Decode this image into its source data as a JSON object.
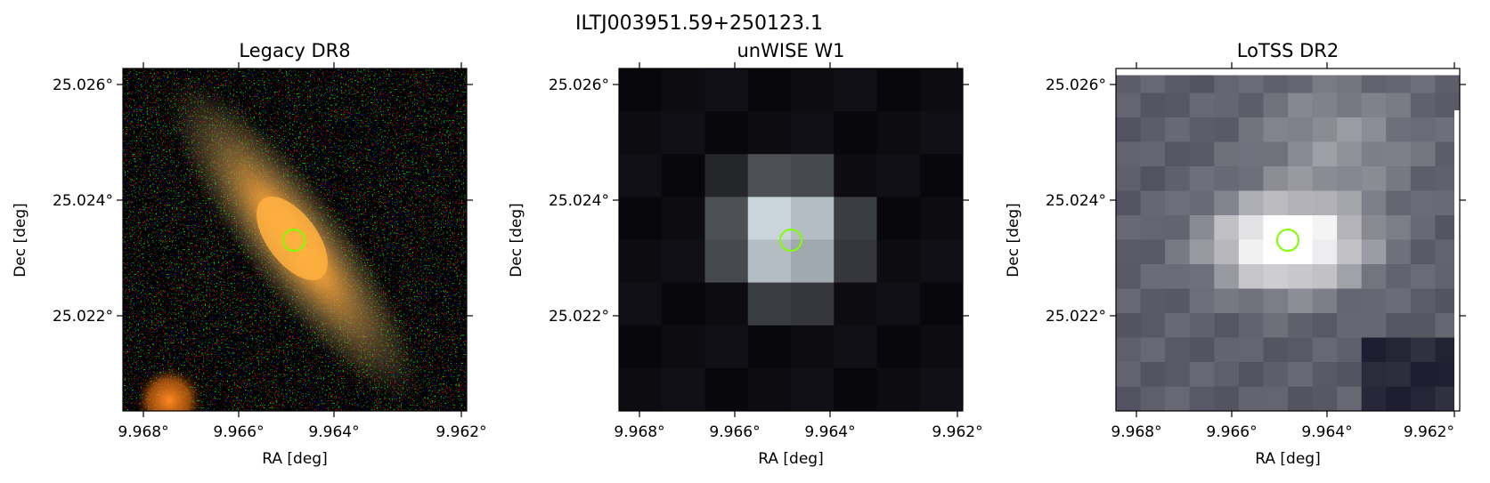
{
  "figure": {
    "title": "ILTJ003951.59+250123.1"
  },
  "panels": [
    {
      "id": "legacy",
      "title": "Legacy DR8",
      "xlabel": "RA [deg]",
      "ylabel": "Dec [deg]",
      "xticks": [
        "9.968°",
        "9.966°",
        "9.964°",
        "9.962°"
      ],
      "yticks": [
        "25.026°",
        "25.024°",
        "25.022°"
      ]
    },
    {
      "id": "unwise",
      "title": "unWISE W1",
      "xlabel": "RA [deg]",
      "ylabel": "Dec [deg]",
      "xticks": [
        "9.968°",
        "9.966°",
        "9.964°",
        "9.962°"
      ],
      "yticks": [
        "25.026°",
        "25.024°",
        "25.022°"
      ]
    },
    {
      "id": "lotss",
      "title": "LoTSS DR2",
      "xlabel": "RA [deg]",
      "ylabel": "Dec [deg]",
      "xticks": [
        "9.968°",
        "9.966°",
        "9.964°",
        "9.962°"
      ],
      "yticks": [
        "25.026°",
        "25.024°",
        "25.022°"
      ]
    }
  ],
  "marker": {
    "shape": "circle",
    "color": "#7fff00"
  }
}
